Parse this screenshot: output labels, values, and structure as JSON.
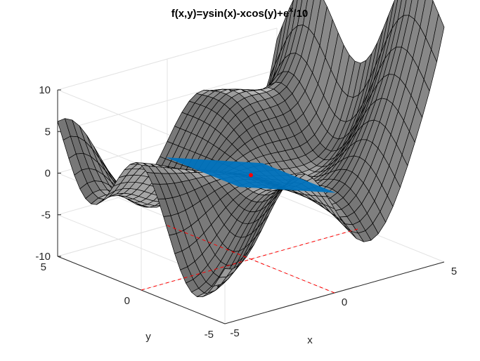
{
  "chart_data": {
    "type": "surface",
    "title": "f(x,y)=ysin(x)-xcos(y)+e",
    "title_superscript": "x",
    "title_tail": "/10",
    "function": "f(x,y)=ysin(x)-xcos(y)+e^x/10",
    "xlabel": "x",
    "ylabel": "y",
    "zlabel": "",
    "xlim": [
      -5,
      5
    ],
    "ylim": [
      -5,
      5
    ],
    "zlim": [
      -10,
      10
    ],
    "xticks": [
      "-5",
      "0",
      "5"
    ],
    "yticks": [
      "-5",
      "0",
      "5"
    ],
    "zticks": [
      "-10",
      "-5",
      "0",
      "5",
      "10"
    ],
    "grid": true,
    "surface_color": "#c8c8c8",
    "mesh_color": "#000000",
    "plane": {
      "label": "tangent plane",
      "color": "#0072bd"
    },
    "point": {
      "x": 0,
      "y": 0,
      "color": "#ff0000"
    },
    "guide_line_color": "#ff0000"
  }
}
